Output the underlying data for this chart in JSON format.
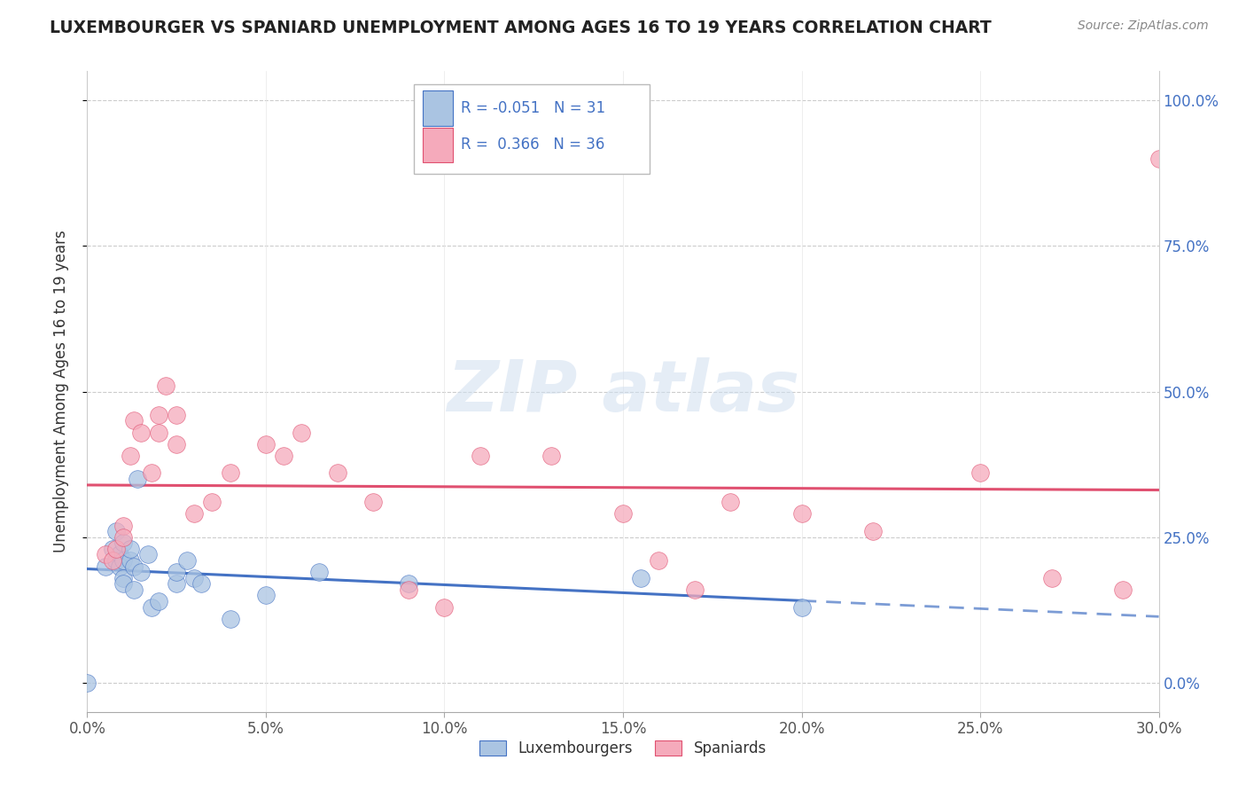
{
  "title": "LUXEMBOURGER VS SPANIARD UNEMPLOYMENT AMONG AGES 16 TO 19 YEARS CORRELATION CHART",
  "source": "Source: ZipAtlas.com",
  "ylabel": "Unemployment Among Ages 16 to 19 years",
  "xlim": [
    0.0,
    0.3
  ],
  "ylim": [
    -0.05,
    1.05
  ],
  "xtick_labels": [
    "0.0%",
    "5.0%",
    "10.0%",
    "15.0%",
    "20.0%",
    "25.0%",
    "30.0%"
  ],
  "xtick_vals": [
    0.0,
    0.05,
    0.1,
    0.15,
    0.2,
    0.25,
    0.3
  ],
  "ytick_labels": [
    "0.0%",
    "25.0%",
    "50.0%",
    "75.0%",
    "100.0%"
  ],
  "ytick_vals": [
    0.0,
    0.25,
    0.5,
    0.75,
    1.0
  ],
  "legend_R_lux": "-0.051",
  "legend_N_lux": "31",
  "legend_R_spa": "0.366",
  "legend_N_spa": "36",
  "lux_color": "#aac4e2",
  "spa_color": "#f5aabb",
  "lux_line_color": "#4472c4",
  "spa_line_color": "#e05070",
  "lux_points": [
    [
      0.0,
      0.0
    ],
    [
      0.005,
      0.2
    ],
    [
      0.007,
      0.23
    ],
    [
      0.008,
      0.21
    ],
    [
      0.008,
      0.26
    ],
    [
      0.009,
      0.22
    ],
    [
      0.009,
      0.2
    ],
    [
      0.01,
      0.24
    ],
    [
      0.01,
      0.21
    ],
    [
      0.01,
      0.18
    ],
    [
      0.01,
      0.17
    ],
    [
      0.012,
      0.21
    ],
    [
      0.012,
      0.23
    ],
    [
      0.013,
      0.2
    ],
    [
      0.013,
      0.16
    ],
    [
      0.014,
      0.35
    ],
    [
      0.015,
      0.19
    ],
    [
      0.017,
      0.22
    ],
    [
      0.018,
      0.13
    ],
    [
      0.02,
      0.14
    ],
    [
      0.025,
      0.17
    ],
    [
      0.025,
      0.19
    ],
    [
      0.028,
      0.21
    ],
    [
      0.03,
      0.18
    ],
    [
      0.032,
      0.17
    ],
    [
      0.04,
      0.11
    ],
    [
      0.05,
      0.15
    ],
    [
      0.065,
      0.19
    ],
    [
      0.09,
      0.17
    ],
    [
      0.155,
      0.18
    ],
    [
      0.2,
      0.13
    ]
  ],
  "spa_points": [
    [
      0.005,
      0.22
    ],
    [
      0.007,
      0.21
    ],
    [
      0.008,
      0.23
    ],
    [
      0.01,
      0.27
    ],
    [
      0.01,
      0.25
    ],
    [
      0.012,
      0.39
    ],
    [
      0.013,
      0.45
    ],
    [
      0.015,
      0.43
    ],
    [
      0.018,
      0.36
    ],
    [
      0.02,
      0.43
    ],
    [
      0.02,
      0.46
    ],
    [
      0.022,
      0.51
    ],
    [
      0.025,
      0.46
    ],
    [
      0.025,
      0.41
    ],
    [
      0.03,
      0.29
    ],
    [
      0.035,
      0.31
    ],
    [
      0.04,
      0.36
    ],
    [
      0.05,
      0.41
    ],
    [
      0.055,
      0.39
    ],
    [
      0.06,
      0.43
    ],
    [
      0.07,
      0.36
    ],
    [
      0.08,
      0.31
    ],
    [
      0.09,
      0.16
    ],
    [
      0.1,
      0.13
    ],
    [
      0.11,
      0.39
    ],
    [
      0.13,
      0.39
    ],
    [
      0.15,
      0.29
    ],
    [
      0.16,
      0.21
    ],
    [
      0.17,
      0.16
    ],
    [
      0.18,
      0.31
    ],
    [
      0.2,
      0.29
    ],
    [
      0.22,
      0.26
    ],
    [
      0.25,
      0.36
    ],
    [
      0.27,
      0.18
    ],
    [
      0.29,
      0.16
    ],
    [
      0.3,
      0.9
    ]
  ]
}
